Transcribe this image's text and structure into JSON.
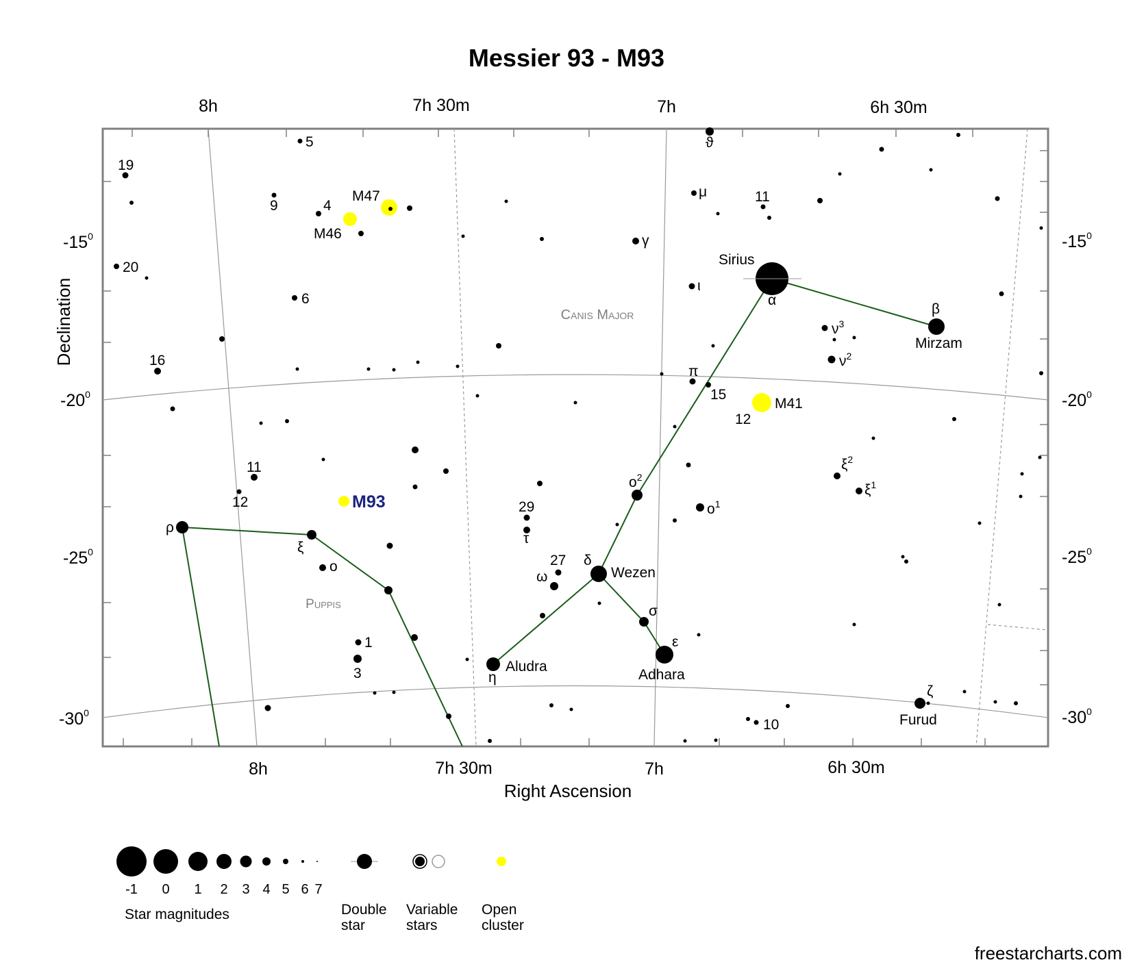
{
  "title": "Messier 93 - M93",
  "credit": "freestarcharts.com",
  "colors": {
    "star": "#000000",
    "cluster": "#ffff00",
    "constellation_line": "#1a5c1a",
    "grid": "#999999",
    "frame": "#808080",
    "target_label": "#1a237e",
    "constellation_name": "#808080"
  },
  "axes": {
    "x_label": "Right Ascension",
    "y_label": "Declination",
    "top_ticks": [
      "8h",
      "7h 30m",
      "7h",
      "6h 30m"
    ],
    "bottom_ticks": [
      "8h",
      "7h 30m",
      "7h",
      "6h 30m"
    ],
    "left_ticks": [
      "-15",
      "-20",
      "-25",
      "-30"
    ],
    "right_ticks": [
      "-15",
      "-20",
      "-25",
      "-30"
    ],
    "degree_mark": "0"
  },
  "constellations": [
    "Canis Major",
    "Puppis"
  ],
  "labeled_objects": {
    "target": "M93",
    "clusters": [
      "M46",
      "M47",
      "M41"
    ],
    "named_stars": [
      "Sirius",
      "Mirzam",
      "Wezen",
      "Adhara",
      "Aludra",
      "Furud"
    ],
    "greek": [
      "ϑ",
      "μ",
      "γ",
      "ι",
      "α",
      "β",
      "ν3",
      "ν2",
      "π",
      "ο2",
      "ο1",
      "ξ2",
      "ξ1",
      "δ",
      "σ",
      "ε",
      "η",
      "ζ",
      "ω",
      "τ",
      "ρ",
      "ξ",
      "ο"
    ],
    "numbers": [
      "5",
      "19",
      "9",
      "4",
      "20",
      "6",
      "16",
      "11",
      "12",
      "11",
      "15",
      "12",
      "29",
      "27",
      "1",
      "3",
      "10"
    ]
  },
  "legend": {
    "magnitudes": [
      "-1",
      "0",
      "1",
      "2",
      "3",
      "4",
      "5",
      "6",
      "7"
    ],
    "magnitudes_caption": "Star magnitudes",
    "double_star": "Double star",
    "variable_stars": "Variable stars",
    "open_cluster": "Open cluster"
  }
}
